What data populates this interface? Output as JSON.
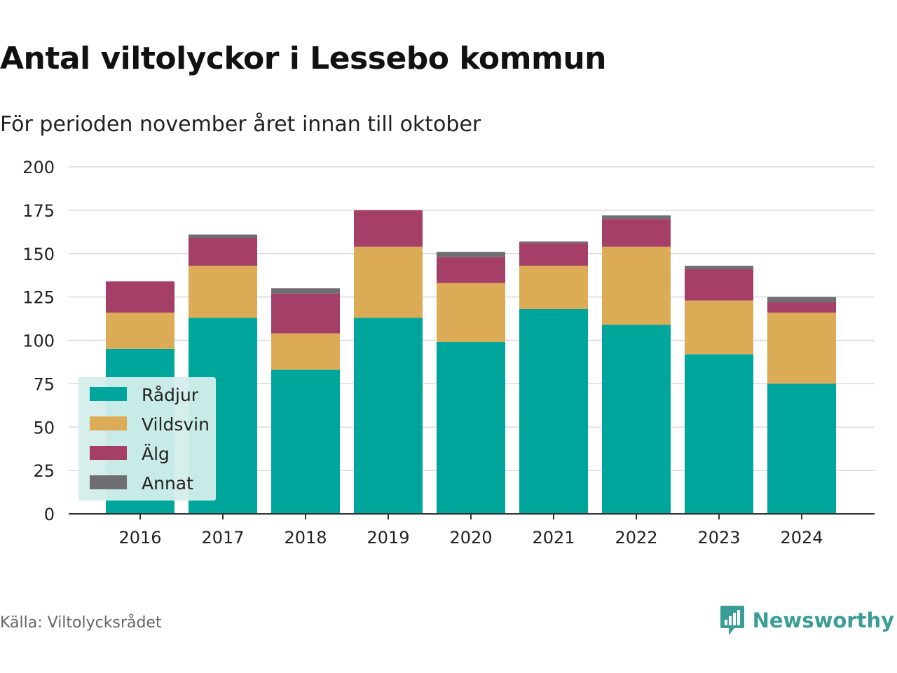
{
  "header": {
    "title": "Antal viltolyckor i Lessebo kommun",
    "subtitle": "För perioden november året innan till oktober"
  },
  "footer": {
    "source": "Källa: Viltolycksrådet",
    "brand": "Newsworthy",
    "brand_icon": "bar-chart-logo-icon",
    "brand_color": "#3a9e96"
  },
  "chart_data": {
    "type": "bar",
    "stacked": true,
    "categories": [
      "2016",
      "2017",
      "2018",
      "2019",
      "2020",
      "2021",
      "2022",
      "2023",
      "2024"
    ],
    "series": [
      {
        "name": "Rådjur",
        "color": "#00a59b",
        "values": [
          95,
          113,
          83,
          113,
          99,
          118,
          109,
          92,
          75
        ]
      },
      {
        "name": "Vildsvin",
        "color": "#dbab56",
        "values": [
          21,
          30,
          21,
          41,
          34,
          25,
          45,
          31,
          41
        ]
      },
      {
        "name": "Älg",
        "color": "#a53f67",
        "values": [
          18,
          16,
          23,
          21,
          15,
          13,
          16,
          18,
          6
        ]
      },
      {
        "name": "Annat",
        "color": "#6e6e73",
        "values": [
          0,
          2,
          3,
          0,
          3,
          1,
          2,
          2,
          3
        ]
      }
    ],
    "ylim": [
      0,
      200
    ],
    "yticks": [
      0,
      25,
      50,
      75,
      100,
      125,
      150,
      175,
      200
    ],
    "grid": true,
    "legend": {
      "placement": "bottom-left",
      "background": "#d4eeec"
    }
  }
}
